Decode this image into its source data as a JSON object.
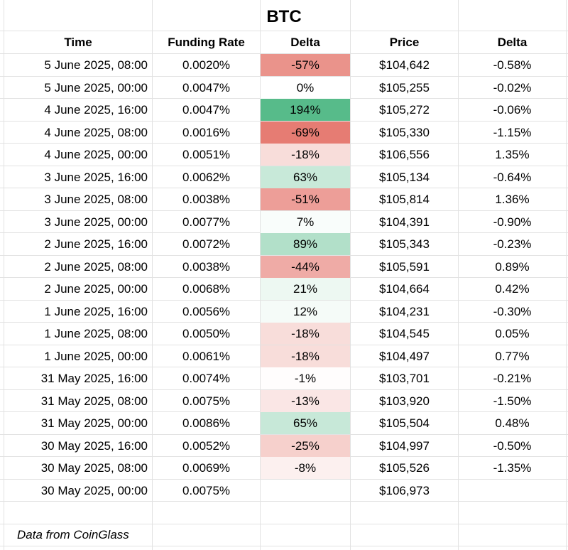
{
  "title": "BTC",
  "headers": [
    "Time",
    "Funding Rate",
    "Delta",
    "Price",
    "Delta"
  ],
  "rows": [
    {
      "time": "5 June 2025, 08:00",
      "rate": "0.0020%",
      "delta": "-57%",
      "delta_value": -57,
      "price": "$104,642",
      "price_delta": "-0.58%"
    },
    {
      "time": "5 June 2025, 00:00",
      "rate": "0.0047%",
      "delta": "0%",
      "delta_value": 0,
      "price": "$105,255",
      "price_delta": "-0.02%"
    },
    {
      "time": "4 June 2025, 16:00",
      "rate": "0.0047%",
      "delta": "194%",
      "delta_value": 194,
      "price": "$105,272",
      "price_delta": "-0.06%"
    },
    {
      "time": "4 June 2025, 08:00",
      "rate": "0.0016%",
      "delta": "-69%",
      "delta_value": -69,
      "price": "$105,330",
      "price_delta": "-1.15%"
    },
    {
      "time": "4 June 2025, 00:00",
      "rate": "0.0051%",
      "delta": "-18%",
      "delta_value": -18,
      "price": "$106,556",
      "price_delta": "1.35%"
    },
    {
      "time": "3 June 2025, 16:00",
      "rate": "0.0062%",
      "delta": "63%",
      "delta_value": 63,
      "price": "$105,134",
      "price_delta": "-0.64%"
    },
    {
      "time": "3 June 2025, 08:00",
      "rate": "0.0038%",
      "delta": "-51%",
      "delta_value": -51,
      "price": "$105,814",
      "price_delta": "1.36%"
    },
    {
      "time": "3 June 2025, 00:00",
      "rate": "0.0077%",
      "delta": "7%",
      "delta_value": 7,
      "price": "$104,391",
      "price_delta": "-0.90%"
    },
    {
      "time": "2 June 2025, 16:00",
      "rate": "0.0072%",
      "delta": "89%",
      "delta_value": 89,
      "price": "$105,343",
      "price_delta": "-0.23%"
    },
    {
      "time": "2 June 2025, 08:00",
      "rate": "0.0038%",
      "delta": "-44%",
      "delta_value": -44,
      "price": "$105,591",
      "price_delta": "0.89%"
    },
    {
      "time": "2 June 2025, 00:00",
      "rate": "0.0068%",
      "delta": "21%",
      "delta_value": 21,
      "price": "$104,664",
      "price_delta": "0.42%"
    },
    {
      "time": "1 June 2025, 16:00",
      "rate": "0.0056%",
      "delta": "12%",
      "delta_value": 12,
      "price": "$104,231",
      "price_delta": "-0.30%"
    },
    {
      "time": "1 June 2025, 08:00",
      "rate": "0.0050%",
      "delta": "-18%",
      "delta_value": -18,
      "price": "$104,545",
      "price_delta": "0.05%"
    },
    {
      "time": "1 June 2025, 00:00",
      "rate": "0.0061%",
      "delta": "-18%",
      "delta_value": -18,
      "price": "$104,497",
      "price_delta": "0.77%"
    },
    {
      "time": "31 May 2025, 16:00",
      "rate": "0.0074%",
      "delta": "-1%",
      "delta_value": -1,
      "price": "$103,701",
      "price_delta": "-0.21%"
    },
    {
      "time": "31 May 2025, 08:00",
      "rate": "0.0075%",
      "delta": "-13%",
      "delta_value": -13,
      "price": "$103,920",
      "price_delta": "-1.50%"
    },
    {
      "time": "31 May 2025, 00:00",
      "rate": "0.0086%",
      "delta": "65%",
      "delta_value": 65,
      "price": "$105,504",
      "price_delta": "0.48%"
    },
    {
      "time": "30 May 2025, 16:00",
      "rate": "0.0052%",
      "delta": "-25%",
      "delta_value": -25,
      "price": "$104,997",
      "price_delta": "-0.50%"
    },
    {
      "time": "30 May 2025, 08:00",
      "rate": "0.0069%",
      "delta": "-8%",
      "delta_value": -8,
      "price": "$105,526",
      "price_delta": "-1.35%"
    },
    {
      "time": "30 May 2025, 00:00",
      "rate": "0.0075%",
      "delta": "",
      "delta_value": null,
      "price": "$106,973",
      "price_delta": ""
    }
  ],
  "note": "Data from CoinGlass",
  "colors": {
    "negative_max": "#e67c73",
    "neutral": "#ffffff",
    "positive_max": "#57bb8a",
    "grid": "#e2e2e2"
  }
}
